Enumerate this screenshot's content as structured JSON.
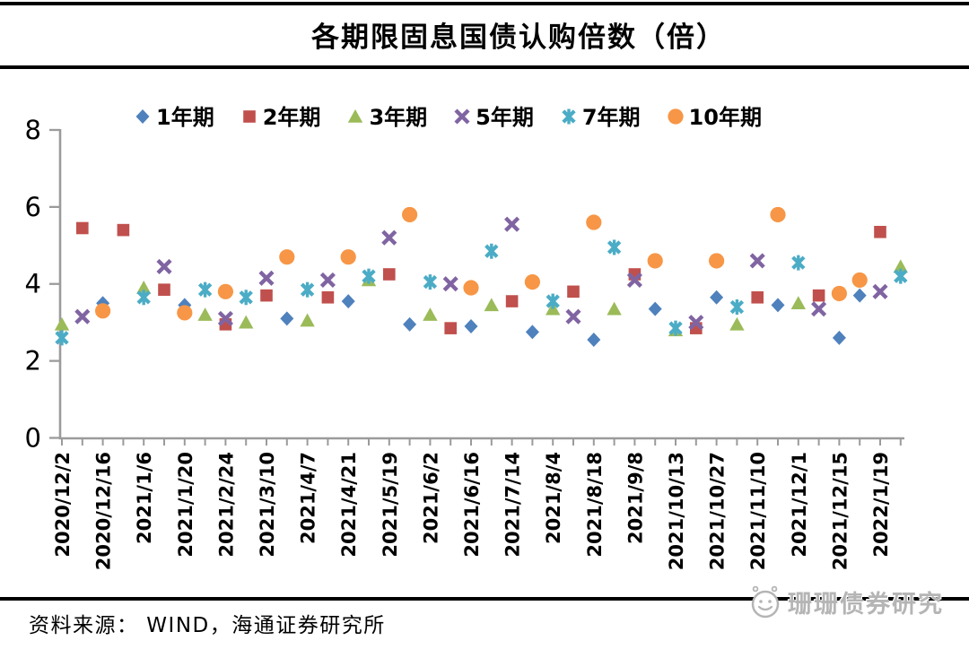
{
  "header": {
    "title": "各期限固息国债认购倍数（倍）"
  },
  "chart_data": {
    "type": "scatter",
    "title": "各期限固息国债认购倍数（倍）",
    "ylabel": "",
    "xlabel": "",
    "ylim": [
      0,
      8
    ],
    "yticks": [
      0,
      2,
      4,
      6,
      8
    ],
    "grid": false,
    "legend_position": "top",
    "x_tick_count": 42,
    "x_labels_every": 2,
    "x_labels": [
      "2020/12/2",
      "2020/12/16",
      "2021/1/6",
      "2021/1/20",
      "2021/2/24",
      "2021/3/10",
      "2021/4/7",
      "2021/4/21",
      "2021/5/19",
      "2021/6/2",
      "2021/6/16",
      "2021/7/14",
      "2021/8/4",
      "2021/8/18",
      "2021/9/8",
      "2021/10/13",
      "2021/10/27",
      "2021/11/10",
      "2021/12/1",
      "2021/12/15",
      "2022/1/19"
    ],
    "axis_color": "#9b9b9b",
    "series": [
      {
        "name": "1年期",
        "marker": "diamond",
        "color": "#4F81BD",
        "points": [
          [
            2,
            3.5
          ],
          [
            6,
            3.45
          ],
          [
            11,
            3.1
          ],
          [
            14,
            3.55
          ],
          [
            17,
            2.95
          ],
          [
            20,
            2.9
          ],
          [
            23,
            2.75
          ],
          [
            26,
            2.55
          ],
          [
            29,
            3.35
          ],
          [
            32,
            3.65
          ],
          [
            35,
            3.45
          ],
          [
            38,
            2.6
          ],
          [
            39,
            3.7
          ]
        ]
      },
      {
        "name": "2年期",
        "marker": "square",
        "color": "#C0504D",
        "points": [
          [
            1,
            5.45
          ],
          [
            3,
            5.4
          ],
          [
            5,
            3.85
          ],
          [
            8,
            2.95
          ],
          [
            10,
            3.7
          ],
          [
            13,
            3.65
          ],
          [
            16,
            4.25
          ],
          [
            19,
            2.85
          ],
          [
            22,
            3.55
          ],
          [
            25,
            3.8
          ],
          [
            28,
            4.25
          ],
          [
            31,
            2.85
          ],
          [
            34,
            3.65
          ],
          [
            37,
            3.7
          ],
          [
            40,
            5.35
          ]
        ]
      },
      {
        "name": "3年期",
        "marker": "triangle",
        "color": "#9BBB59",
        "points": [
          [
            0,
            2.95
          ],
          [
            4,
            3.9
          ],
          [
            7,
            3.2
          ],
          [
            9,
            3.0
          ],
          [
            12,
            3.05
          ],
          [
            15,
            4.1
          ],
          [
            18,
            3.2
          ],
          [
            21,
            3.45
          ],
          [
            24,
            3.35
          ],
          [
            27,
            3.35
          ],
          [
            30,
            2.8
          ],
          [
            33,
            2.95
          ],
          [
            36,
            3.5
          ],
          [
            41,
            4.45
          ]
        ]
      },
      {
        "name": "5年期",
        "marker": "x",
        "color": "#8064A2",
        "points": [
          [
            1,
            3.15
          ],
          [
            5,
            4.45
          ],
          [
            8,
            3.1
          ],
          [
            10,
            4.15
          ],
          [
            13,
            4.1
          ],
          [
            16,
            5.2
          ],
          [
            19,
            4.0
          ],
          [
            22,
            5.55
          ],
          [
            25,
            3.15
          ],
          [
            28,
            4.1
          ],
          [
            31,
            3.0
          ],
          [
            34,
            4.6
          ],
          [
            37,
            3.35
          ],
          [
            40,
            3.8
          ]
        ]
      },
      {
        "name": "7年期",
        "marker": "asterisk",
        "color": "#4BACC6",
        "points": [
          [
            0,
            2.6
          ],
          [
            4,
            3.65
          ],
          [
            7,
            3.85
          ],
          [
            9,
            3.65
          ],
          [
            12,
            3.85
          ],
          [
            15,
            4.2
          ],
          [
            18,
            4.05
          ],
          [
            21,
            4.85
          ],
          [
            24,
            3.55
          ],
          [
            27,
            4.95
          ],
          [
            30,
            2.85
          ],
          [
            33,
            3.4
          ],
          [
            36,
            4.55
          ],
          [
            41,
            4.2
          ]
        ]
      },
      {
        "name": "10年期",
        "marker": "circle",
        "color": "#F79646",
        "points": [
          [
            2,
            3.3
          ],
          [
            6,
            3.25
          ],
          [
            8,
            3.8
          ],
          [
            11,
            4.7
          ],
          [
            14,
            4.7
          ],
          [
            17,
            5.8
          ],
          [
            20,
            3.9
          ],
          [
            23,
            4.05
          ],
          [
            26,
            5.6
          ],
          [
            29,
            4.6
          ],
          [
            32,
            4.6
          ],
          [
            35,
            5.8
          ],
          [
            38,
            3.75
          ],
          [
            39,
            4.1
          ]
        ]
      }
    ]
  },
  "footer": {
    "source": "资料来源： WIND，海通证券研究所"
  },
  "watermark": {
    "text": "珊珊债券研究",
    "icon": "smiley-face-icon",
    "color": "#b5b5b5"
  }
}
